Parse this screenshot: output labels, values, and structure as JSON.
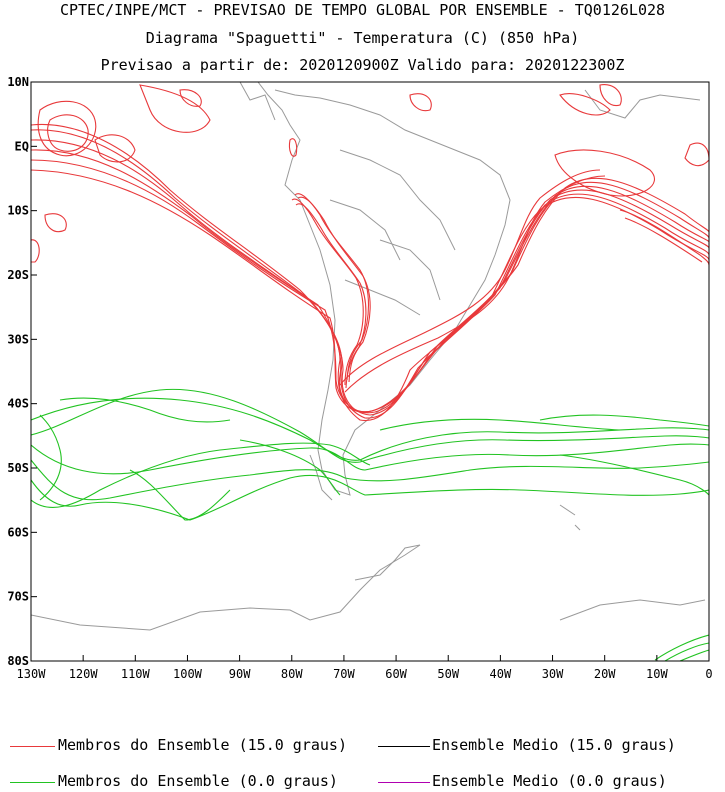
{
  "header": {
    "line1": "CPTEC/INPE/MCT - PREVISAO DE TEMPO GLOBAL POR ENSEMBLE - TQ0126L028",
    "line2": "Diagrama \"Spaguetti\" - Temperatura (C) (850 hPa)",
    "line3": "Previsao a partir de: 2020120900Z  Valido para: 2020122300Z"
  },
  "map": {
    "lat_labels": [
      "10N",
      "EQ",
      "10S",
      "20S",
      "30S",
      "40S",
      "50S",
      "60S",
      "70S",
      "80S"
    ],
    "lon_labels": [
      "130W",
      "120W",
      "110W",
      "100W",
      "90W",
      "80W",
      "70W",
      "60W",
      "50W",
      "40W",
      "30W",
      "20W",
      "10W",
      "0"
    ],
    "lat_range": [
      -80,
      10
    ],
    "lon_range": [
      -130,
      0
    ]
  },
  "legend": {
    "items": [
      {
        "label": "Membros do Ensemble (15.0 graus)",
        "color": "#e8393b"
      },
      {
        "label": "Ensemble Medio (15.0 graus)",
        "color": "#000000"
      },
      {
        "label": "Membros do Ensemble (0.0 graus)",
        "color": "#22c322"
      },
      {
        "label": "Ensemble Medio (0.0 graus)",
        "color": "#b000b0"
      }
    ]
  }
}
